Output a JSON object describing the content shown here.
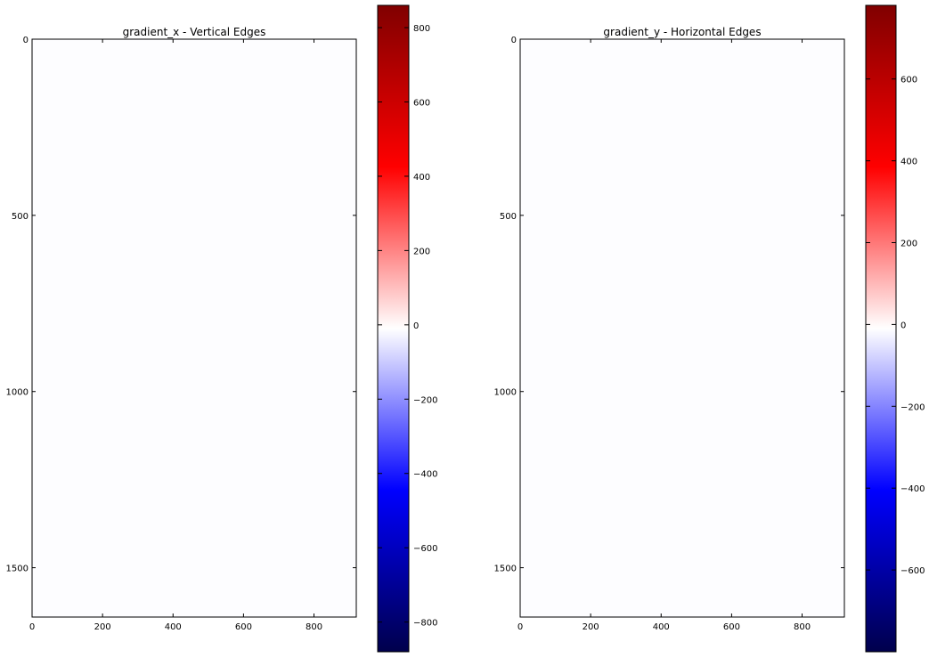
{
  "chart_data": [
    {
      "type": "heatmap",
      "title": "gradient_x - Vertical Edges",
      "xlabel": "",
      "ylabel": "",
      "xlim": [
        0,
        920
      ],
      "ylim": [
        1640,
        0
      ],
      "x_ticks": [
        0,
        200,
        400,
        600,
        800
      ],
      "y_ticks": [
        0,
        500,
        1000,
        1500
      ],
      "colormap": "seismic",
      "colorbar": {
        "range": [
          -880,
          860
        ],
        "ticks": [
          800,
          600,
          400,
          200,
          0,
          -200,
          -400,
          -600,
          -800
        ],
        "tick_labels": [
          "800",
          "600",
          "400",
          "200",
          "0",
          "−200",
          "−400",
          "−600",
          "−800"
        ],
        "colors": {
          "max": "#800000",
          "high": "#ff0000",
          "mid": "#ffffff",
          "low": "#0000ff",
          "min": "#00004c"
        }
      }
    },
    {
      "type": "heatmap",
      "title": "gradient_y - Horizontal Edges",
      "xlabel": "",
      "ylabel": "",
      "xlim": [
        0,
        920
      ],
      "ylim": [
        1640,
        0
      ],
      "x_ticks": [
        0,
        200,
        400,
        600,
        800
      ],
      "y_ticks": [
        0,
        500,
        1000,
        1500
      ],
      "colormap": "seismic",
      "colorbar": {
        "range": [
          -800,
          780
        ],
        "ticks": [
          600,
          400,
          200,
          0,
          -200,
          -400,
          -600
        ],
        "tick_labels": [
          "600",
          "400",
          "200",
          "0",
          "−200",
          "−400",
          "−600"
        ],
        "colors": {
          "max": "#800000",
          "high": "#ff0000",
          "mid": "#ffffff",
          "low": "#0000ff",
          "min": "#00004c"
        }
      }
    }
  ]
}
